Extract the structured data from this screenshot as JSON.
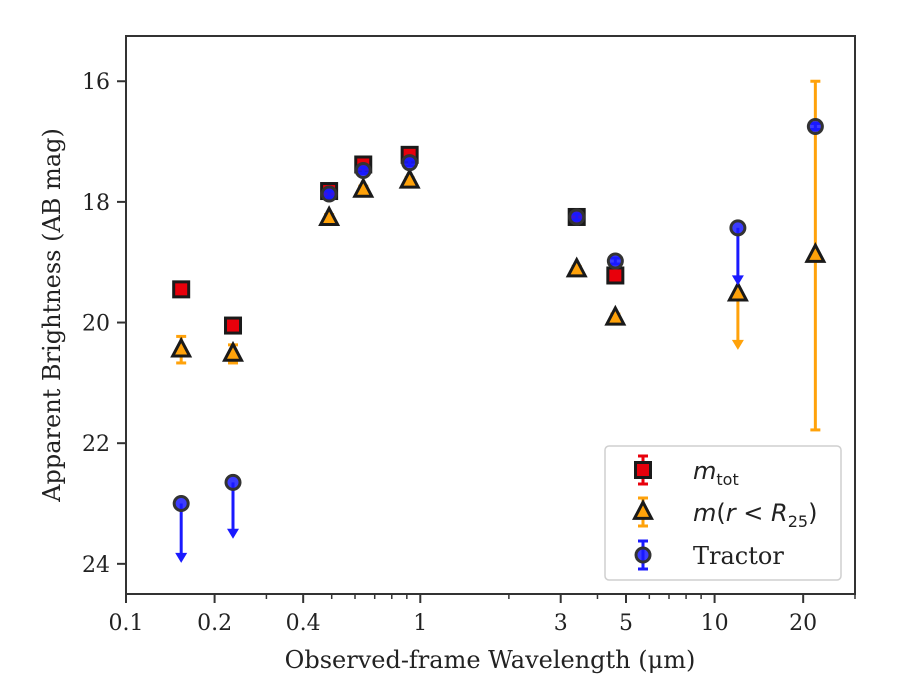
{
  "chart_data": {
    "type": "scatter",
    "xlabel": "Observed-frame Wavelength (μm)",
    "ylabel": "Apparent Brightness (AB mag)",
    "xscale": "log",
    "xlim": [
      0.1,
      30
    ],
    "ylim": [
      24.5,
      15.25
    ],
    "y_inverted": true,
    "xticks": [
      {
        "value": 0.1,
        "label": "0.1"
      },
      {
        "value": 0.2,
        "label": "0.2"
      },
      {
        "value": 0.4,
        "label": "0.4"
      },
      {
        "value": 1,
        "label": "1"
      },
      {
        "value": 3,
        "label": "3"
      },
      {
        "value": 5,
        "label": "5"
      },
      {
        "value": 10,
        "label": "10"
      },
      {
        "value": 20,
        "label": "20"
      }
    ],
    "yticks": [
      {
        "value": 16,
        "label": "16"
      },
      {
        "value": 18,
        "label": "18"
      },
      {
        "value": 20,
        "label": "20"
      },
      {
        "value": 22,
        "label": "22"
      },
      {
        "value": 24,
        "label": "24"
      }
    ],
    "grid": false,
    "legend_position": "lower-right",
    "series": [
      {
        "name": "m_tot",
        "legend_parts": {
          "main": "m",
          "sub": "tot"
        },
        "marker": "square",
        "color": "#e8000b",
        "edge_color": "#1a1a1a",
        "points": [
          {
            "x": 0.154,
            "y": 19.45,
            "err": 0.1
          },
          {
            "x": 0.231,
            "y": 20.05,
            "err": 0.1
          },
          {
            "x": 0.49,
            "y": 17.82,
            "err": 0.1
          },
          {
            "x": 0.64,
            "y": 17.38,
            "err": 0.1
          },
          {
            "x": 0.92,
            "y": 17.22,
            "err": 0.1
          },
          {
            "x": 3.4,
            "y": 18.25,
            "err": 0.08
          },
          {
            "x": 4.6,
            "y": 19.22,
            "err": 0.1
          }
        ]
      },
      {
        "name": "m(r < R25)",
        "legend_parts": {
          "prefix": "m(",
          "r": "r",
          "op": " < ",
          "R": "R",
          "sub": "25",
          "suffix": ")"
        },
        "marker": "triangle",
        "color": "#ffa20a",
        "edge_color": "#1a1a1a",
        "points": [
          {
            "x": 0.154,
            "y": 20.45,
            "err": 0.22
          },
          {
            "x": 0.231,
            "y": 20.52,
            "err": 0.15
          },
          {
            "x": 0.49,
            "y": 18.27,
            "err": 0.06
          },
          {
            "x": 0.64,
            "y": 17.8,
            "err": 0.06
          },
          {
            "x": 0.92,
            "y": 17.65,
            "err": 0.05
          },
          {
            "x": 3.4,
            "y": 19.12,
            "err": 0.05
          },
          {
            "x": 4.6,
            "y": 19.92,
            "err": 0.06
          },
          {
            "x": 12,
            "y": 19.52,
            "upper_limit": true,
            "arrow_to": 20.42
          },
          {
            "x": 22,
            "y": 18.88,
            "err_low": 16.0,
            "err_high": 21.78
          }
        ]
      },
      {
        "name": "Tractor",
        "marker": "circle",
        "color": "#1a1aff",
        "edge_color": "#333333",
        "points": [
          {
            "x": 0.154,
            "y": 23.0,
            "upper_limit": true,
            "arrow_to": 23.95
          },
          {
            "x": 0.231,
            "y": 22.65,
            "upper_limit": true,
            "arrow_to": 23.55
          },
          {
            "x": 0.49,
            "y": 17.87,
            "err": 0.05
          },
          {
            "x": 0.64,
            "y": 17.48,
            "err": 0.05
          },
          {
            "x": 0.92,
            "y": 17.35,
            "err": 0.05
          },
          {
            "x": 3.4,
            "y": 18.25,
            "err": 0.05
          },
          {
            "x": 4.6,
            "y": 18.98,
            "err": 0.05
          },
          {
            "x": 12,
            "y": 18.43,
            "upper_limit": true,
            "arrow_to": 19.35
          },
          {
            "x": 22,
            "y": 16.75,
            "err": 0.05
          }
        ]
      }
    ]
  }
}
